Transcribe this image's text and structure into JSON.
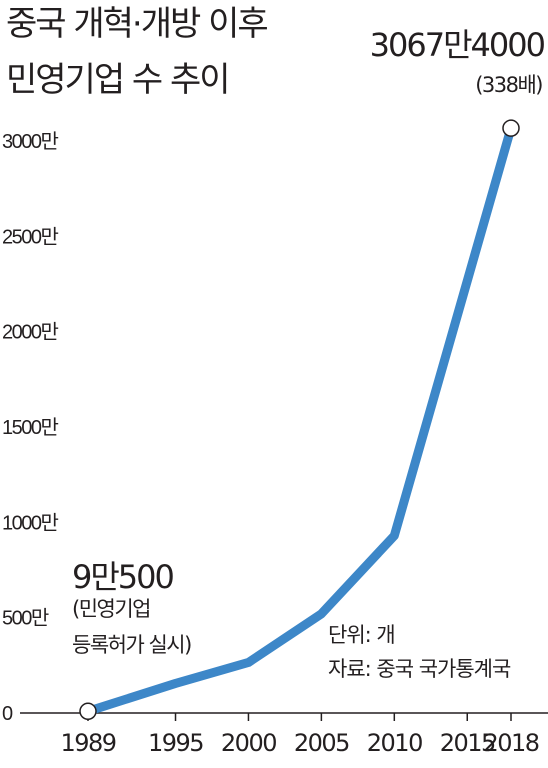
{
  "title_line1": "중국 개혁·개방 이후",
  "title_line2": "민영기업 수 추이",
  "chart_data": {
    "type": "line",
    "x": [
      1989,
      1995,
      2000,
      2005,
      2010,
      2018
    ],
    "x_tick_labels": [
      "1989",
      "1995",
      "2000",
      "2005",
      "2010",
      "2015",
      "2018"
    ],
    "y": [
      90500,
      1550000,
      2650000,
      5200000,
      9300000,
      30674000
    ],
    "y_tick_labels": [
      "0",
      "500만",
      "1000만",
      "1500만",
      "2000만",
      "2500만",
      "3000만"
    ],
    "ylim": [
      0,
      30000000
    ],
    "series_color": "#3d87c8",
    "annotations": {
      "start_value": "9만500",
      "start_note_line1": "(민영기업",
      "start_note_line2": "등록허가 실시)",
      "end_value": "3067만4000",
      "end_note": "(338배)"
    },
    "unit_note": "단위: 개",
    "source_note": "자료: 중국 국가통계국"
  }
}
